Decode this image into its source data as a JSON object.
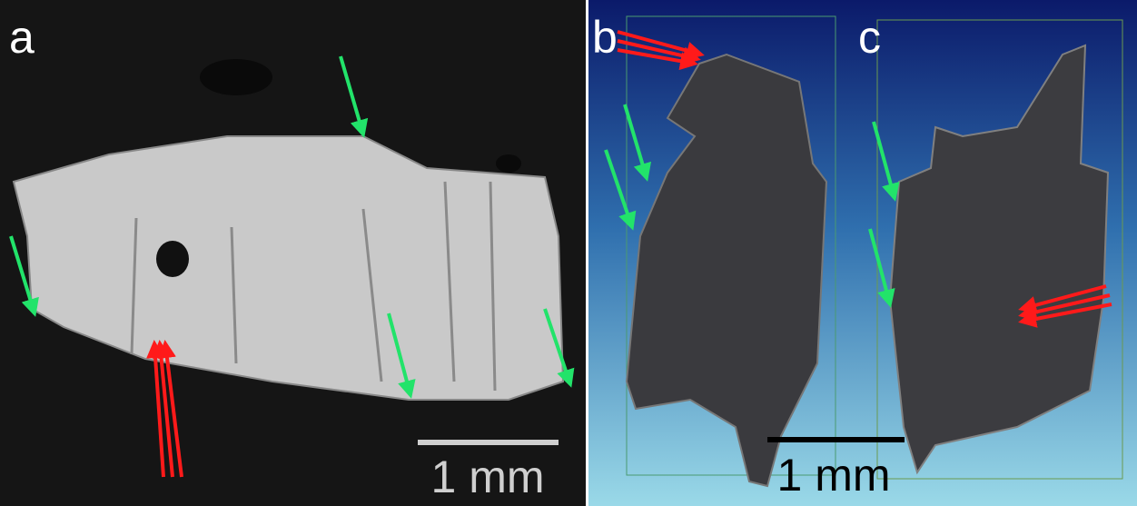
{
  "panels": [
    {
      "label": "a",
      "scale_bar": "1 mm"
    },
    {
      "label": "b",
      "scale_bar": "1 mm"
    },
    {
      "label": "c"
    }
  ]
}
